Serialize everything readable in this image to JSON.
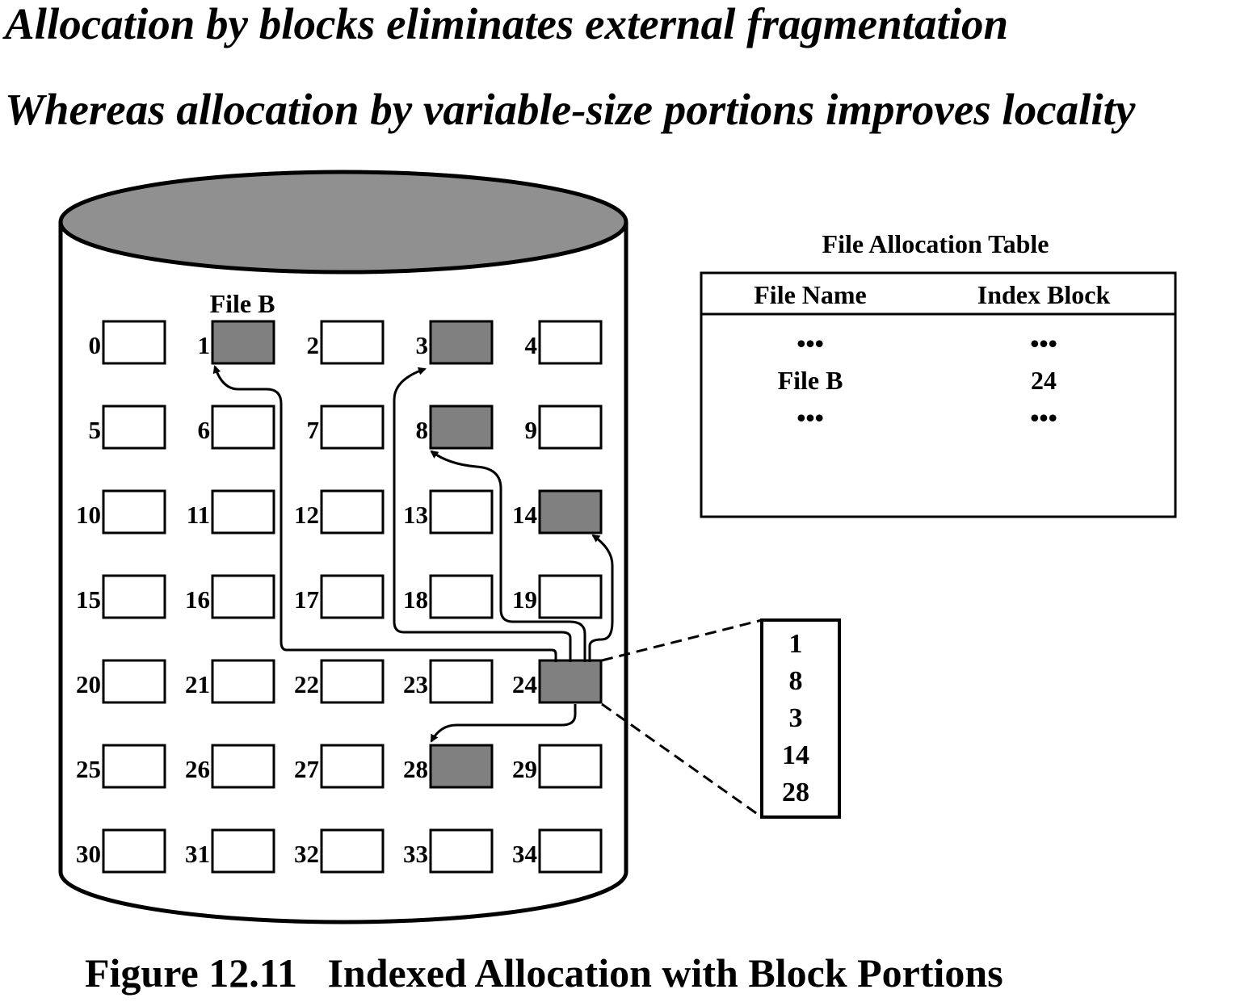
{
  "headlines": [
    "Allocation by blocks eliminates external fragmentation",
    "Whereas allocation by variable-size portions improves locality"
  ],
  "disk": {
    "file_label": "File B",
    "block_count": 35,
    "used_blocks": [
      1,
      3,
      8,
      14,
      24,
      28
    ],
    "index_block": 24,
    "colors": {
      "used": "#808080",
      "free": "#ffffff",
      "disk_top": "#909090"
    }
  },
  "fat": {
    "title": "File Allocation Table",
    "headers": [
      "File Name",
      "Index Block"
    ],
    "rows": [
      [
        "•••",
        "•••"
      ],
      [
        "File B",
        "24"
      ],
      [
        "•••",
        "•••"
      ]
    ]
  },
  "index_block_contents": [
    "1",
    "8",
    "3",
    "14",
    "28"
  ],
  "caption": "Figure 12.11   Indexed Allocation with Block Portions"
}
